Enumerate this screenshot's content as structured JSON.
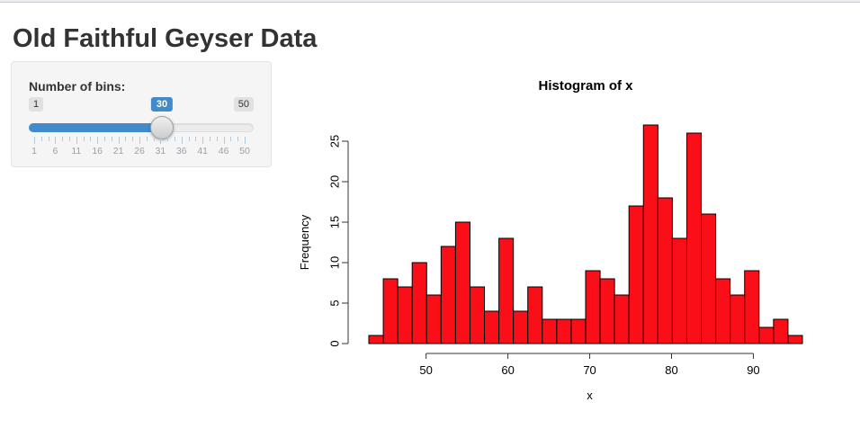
{
  "header": {
    "title": "Old Faithful Geyser Data"
  },
  "sidebar": {
    "bins_label": "Number of bins:",
    "slider": {
      "min": 1,
      "max": 50,
      "value": 30,
      "min_label": "1",
      "max_label": "50",
      "value_label": "30",
      "grid_labels": [
        "1",
        "6",
        "11",
        "16",
        "21",
        "26",
        "31",
        "36",
        "41",
        "46",
        "50"
      ],
      "minor_ticks_between_majors": 2,
      "accent_color": "#428bca"
    }
  },
  "chart_data": {
    "type": "bar",
    "title": "Histogram of x",
    "xlabel": "x",
    "ylabel": "Frequency",
    "x_start": 43,
    "x_end": 96,
    "bins": 30,
    "frequencies": [
      1,
      8,
      7,
      10,
      6,
      12,
      15,
      7,
      4,
      13,
      4,
      7,
      3,
      3,
      3,
      9,
      8,
      6,
      17,
      27,
      18,
      13,
      26,
      16,
      8,
      6,
      9,
      2,
      3,
      1
    ],
    "x_ticks": [
      50,
      60,
      70,
      80,
      90
    ],
    "y_ticks": [
      0,
      5,
      10,
      15,
      20,
      25
    ],
    "xlim": [
      43,
      96
    ],
    "ylim": [
      0,
      27
    ],
    "bar_fill": "#FA0F19",
    "bar_stroke": "#000000",
    "axis_color": "#333333",
    "grid": false,
    "legend": "none"
  }
}
